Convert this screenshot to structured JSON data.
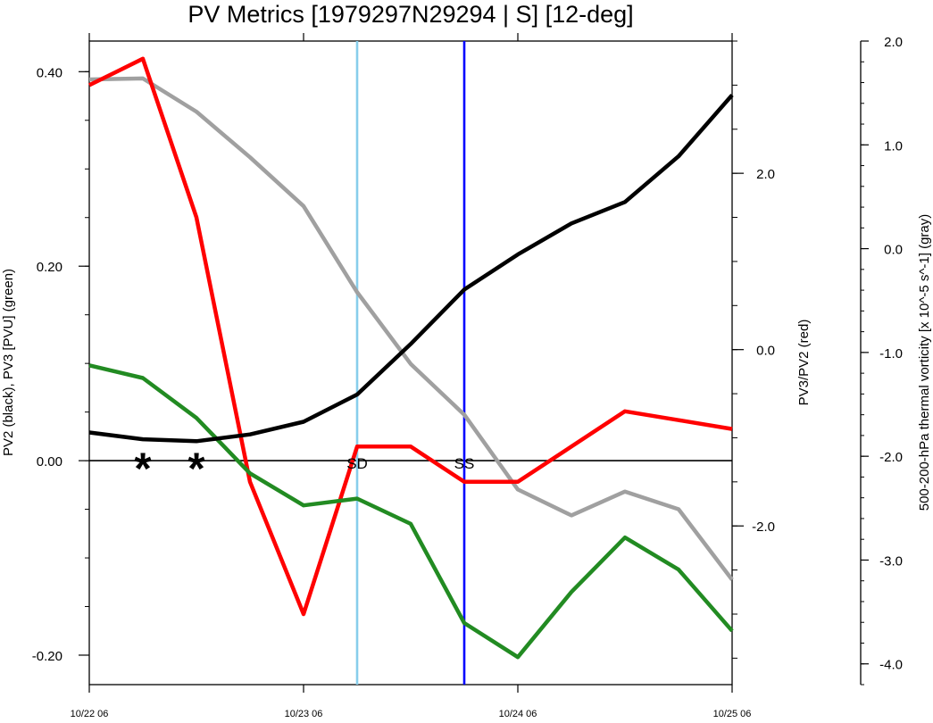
{
  "chart_data": {
    "type": "line",
    "title": "PV Metrics [1979297N29294 | S] [12-deg]",
    "x": {
      "ticks": [
        {
          "v": 0,
          "label": "10/22 06"
        },
        {
          "v": 4,
          "label": "10/23 06"
        },
        {
          "v": 8,
          "label": "10/24 06"
        },
        {
          "v": 12,
          "label": "10/25 06"
        }
      ],
      "range": [
        0,
        12
      ]
    },
    "y_left": {
      "label": "PV2 (black), PV3 [PVU] (green)",
      "range": [
        -0.2303,
        0.4315
      ],
      "ticks": [
        {
          "v": 0.4,
          "label": "0.40"
        },
        {
          "v": 0.2,
          "label": "0.20"
        },
        {
          "v": 0.0,
          "label": "0.00"
        },
        {
          "v": -0.2,
          "label": "-0.20"
        }
      ],
      "minor_step": 0.05
    },
    "y_right1": {
      "label": "PV3/PV2 (red)",
      "range": [
        -3.8,
        3.5
      ],
      "ticks": [
        {
          "v": 2.0,
          "label": "2.0"
        },
        {
          "v": 0.0,
          "label": "0.0"
        },
        {
          "v": -2.0,
          "label": "-2.0"
        }
      ],
      "minor_step": 0.5
    },
    "y_right2": {
      "label": "500-200-hPa thermal vorticity [x 10^-5 s^-1] (gray)",
      "range": [
        -4.2,
        2.0
      ],
      "ticks": [
        {
          "v": 2.0,
          "label": "2.0"
        },
        {
          "v": 1.0,
          "label": "1.0"
        },
        {
          "v": 0.0,
          "label": "0.0"
        },
        {
          "v": -1.0,
          "label": "-1.0"
        },
        {
          "v": -2.0,
          "label": "-2.0"
        },
        {
          "v": -3.0,
          "label": "-3.0"
        },
        {
          "v": -4.0,
          "label": "-4.0"
        }
      ],
      "minor_step": 0.2
    },
    "series": [
      {
        "name": "PV2",
        "axis": "left",
        "color": "#000000",
        "x": [
          0,
          1,
          2,
          3,
          4,
          5,
          6,
          7,
          8,
          9,
          10,
          11,
          12
        ],
        "y": [
          0.029,
          0.022,
          0.02,
          0.027,
          0.04,
          0.068,
          0.12,
          0.176,
          0.212,
          0.244,
          0.266,
          0.313,
          0.376
        ]
      },
      {
        "name": "PV3",
        "axis": "left",
        "color": "#228b22",
        "x": [
          0,
          1,
          2,
          3,
          4,
          5,
          6,
          7,
          8,
          9,
          10,
          11,
          12
        ],
        "y": [
          0.098,
          0.085,
          0.044,
          -0.013,
          -0.046,
          -0.039,
          -0.065,
          -0.167,
          -0.202,
          -0.135,
          -0.079,
          -0.112,
          -0.175
        ]
      },
      {
        "name": "PV3/PV2",
        "axis": "right1",
        "color": "#ff0000",
        "x": [
          0,
          1,
          2,
          3,
          4,
          5,
          6,
          7,
          8,
          9,
          10,
          11,
          12
        ],
        "y": [
          3.0,
          3.3,
          1.5,
          -1.5,
          -3.0,
          -1.1,
          -1.1,
          -1.5,
          -1.5,
          -1.1,
          -0.7,
          -0.8,
          -0.9
        ]
      },
      {
        "name": "thermal vorticity",
        "axis": "right2",
        "color": "#a0a0a0",
        "x": [
          0,
          1,
          2,
          3,
          4,
          5,
          6,
          7,
          8,
          9,
          10,
          11,
          12
        ],
        "y": [
          1.63,
          1.64,
          1.32,
          0.88,
          0.41,
          -0.42,
          -1.11,
          -1.6,
          -2.32,
          -2.57,
          -2.34,
          -2.51,
          -3.19
        ]
      }
    ],
    "vlines": [
      {
        "x": 5,
        "color": "#87ceeb",
        "label": "SD"
      },
      {
        "x": 7,
        "color": "#0000ff",
        "label": "SS"
      }
    ],
    "markers": [
      {
        "x": 1,
        "y": 0.0,
        "symbol": "*"
      },
      {
        "x": 2,
        "y": 0.0,
        "symbol": "*"
      }
    ],
    "zero_line": 0.0,
    "grid": false
  }
}
